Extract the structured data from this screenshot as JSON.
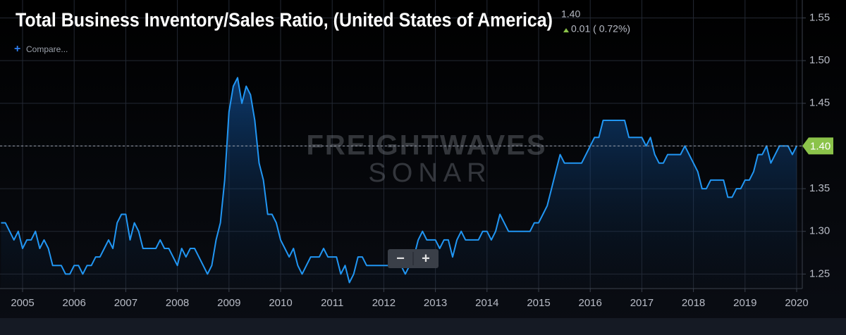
{
  "chart_data": {
    "type": "line",
    "title": "Total Business Inventory/Sales Ratio, (United States of America)",
    "current_value": "1.40",
    "change": "0.01 ( 0.72%)",
    "compare_label": "Compare...",
    "watermark": [
      "FREIGHTWAVES",
      "SONAR"
    ],
    "zoom_controls": [
      "−",
      "+"
    ],
    "color": "#2196f3",
    "grid": true,
    "ylim": [
      1.233,
      1.571
    ],
    "yticks": [
      1.25,
      {
        "value": 1.3,
        "label": "1.30"
      },
      1.35,
      {
        "value": 1.4,
        "label": "1.40"
      },
      1.45,
      {
        "value": 1.5,
        "label": "1.50"
      },
      1.55
    ],
    "categories": [
      null,
      null,
      null,
      null,
      null,
      "2005",
      null,
      null,
      null,
      null,
      null,
      null,
      null,
      null,
      null,
      null,
      null,
      "2006",
      null,
      null,
      null,
      null,
      null,
      null,
      null,
      null,
      null,
      null,
      null,
      "2007",
      null,
      null,
      null,
      null,
      null,
      null,
      null,
      null,
      null,
      null,
      null,
      "2008",
      null,
      null,
      null,
      null,
      null,
      null,
      null,
      null,
      null,
      null,
      null,
      "2009",
      null,
      null,
      null,
      null,
      null,
      null,
      null,
      null,
      null,
      null,
      null,
      "2010",
      null,
      null,
      null,
      null,
      null,
      null,
      null,
      null,
      null,
      null,
      null,
      "2011",
      null,
      null,
      null,
      null,
      null,
      null,
      null,
      null,
      null,
      null,
      null,
      "2012",
      null,
      null,
      null,
      null,
      null,
      null,
      null,
      null,
      null,
      null,
      null,
      "2013",
      null,
      null,
      null,
      null,
      null,
      null,
      null,
      null,
      null,
      null,
      null,
      "2014",
      null,
      null,
      null,
      null,
      null,
      null,
      null,
      null,
      null,
      null,
      null,
      "2015",
      null,
      null,
      null,
      null,
      null,
      null,
      null,
      null,
      null,
      null,
      null,
      "2016",
      null,
      null,
      null,
      null,
      null,
      null,
      null,
      null,
      null,
      null,
      null,
      "2017",
      null,
      null,
      null,
      null,
      null,
      null,
      null,
      null,
      null,
      null,
      null,
      "2018",
      null,
      null,
      null,
      null,
      null,
      null,
      null,
      null,
      null,
      null,
      null,
      "2019",
      null,
      null,
      null,
      null,
      null,
      null,
      null,
      null,
      null,
      null,
      null,
      "2020"
    ],
    "values": [
      1.31,
      1.31,
      1.3,
      1.29,
      1.3,
      1.28,
      1.29,
      1.29,
      1.3,
      1.28,
      1.29,
      1.28,
      1.26,
      1.26,
      1.26,
      1.25,
      1.25,
      1.26,
      1.26,
      1.25,
      1.26,
      1.26,
      1.27,
      1.27,
      1.28,
      1.29,
      1.28,
      1.31,
      1.32,
      1.32,
      1.29,
      1.31,
      1.3,
      1.28,
      1.28,
      1.28,
      1.28,
      1.29,
      1.28,
      1.28,
      1.27,
      1.26,
      1.28,
      1.27,
      1.28,
      1.28,
      1.27,
      1.26,
      1.25,
      1.26,
      1.29,
      1.31,
      1.36,
      1.44,
      1.47,
      1.48,
      1.45,
      1.47,
      1.46,
      1.43,
      1.38,
      1.36,
      1.32,
      1.32,
      1.31,
      1.29,
      1.28,
      1.27,
      1.28,
      1.26,
      1.25,
      1.26,
      1.27,
      1.27,
      1.27,
      1.28,
      1.27,
      1.27,
      1.27,
      1.25,
      1.26,
      1.24,
      1.25,
      1.27,
      1.27,
      1.26,
      1.26,
      1.26,
      1.26,
      1.26,
      1.26,
      1.26,
      1.26,
      1.26,
      1.25,
      1.26,
      1.27,
      1.29,
      1.3,
      1.29,
      1.29,
      1.29,
      1.28,
      1.29,
      1.29,
      1.27,
      1.29,
      1.3,
      1.29,
      1.29,
      1.29,
      1.29,
      1.3,
      1.3,
      1.29,
      1.3,
      1.32,
      1.31,
      1.3,
      1.3,
      1.3,
      1.3,
      1.3,
      1.3,
      1.31,
      1.31,
      1.32,
      1.33,
      1.35,
      1.37,
      1.39,
      1.38,
      1.38,
      1.38,
      1.38,
      1.38,
      1.39,
      1.4,
      1.41,
      1.41,
      1.43,
      1.43,
      1.43,
      1.43,
      1.43,
      1.43,
      1.41,
      1.41,
      1.41,
      1.41,
      1.4,
      1.41,
      1.39,
      1.38,
      1.38,
      1.39,
      1.39,
      1.39,
      1.39,
      1.4,
      1.39,
      1.38,
      1.37,
      1.35,
      1.35,
      1.36,
      1.36,
      1.36,
      1.36,
      1.34,
      1.34,
      1.35,
      1.35,
      1.36,
      1.36,
      1.37,
      1.39,
      1.39,
      1.4,
      1.38,
      1.39,
      1.4,
      1.4,
      1.4,
      1.39,
      1.4
    ]
  }
}
